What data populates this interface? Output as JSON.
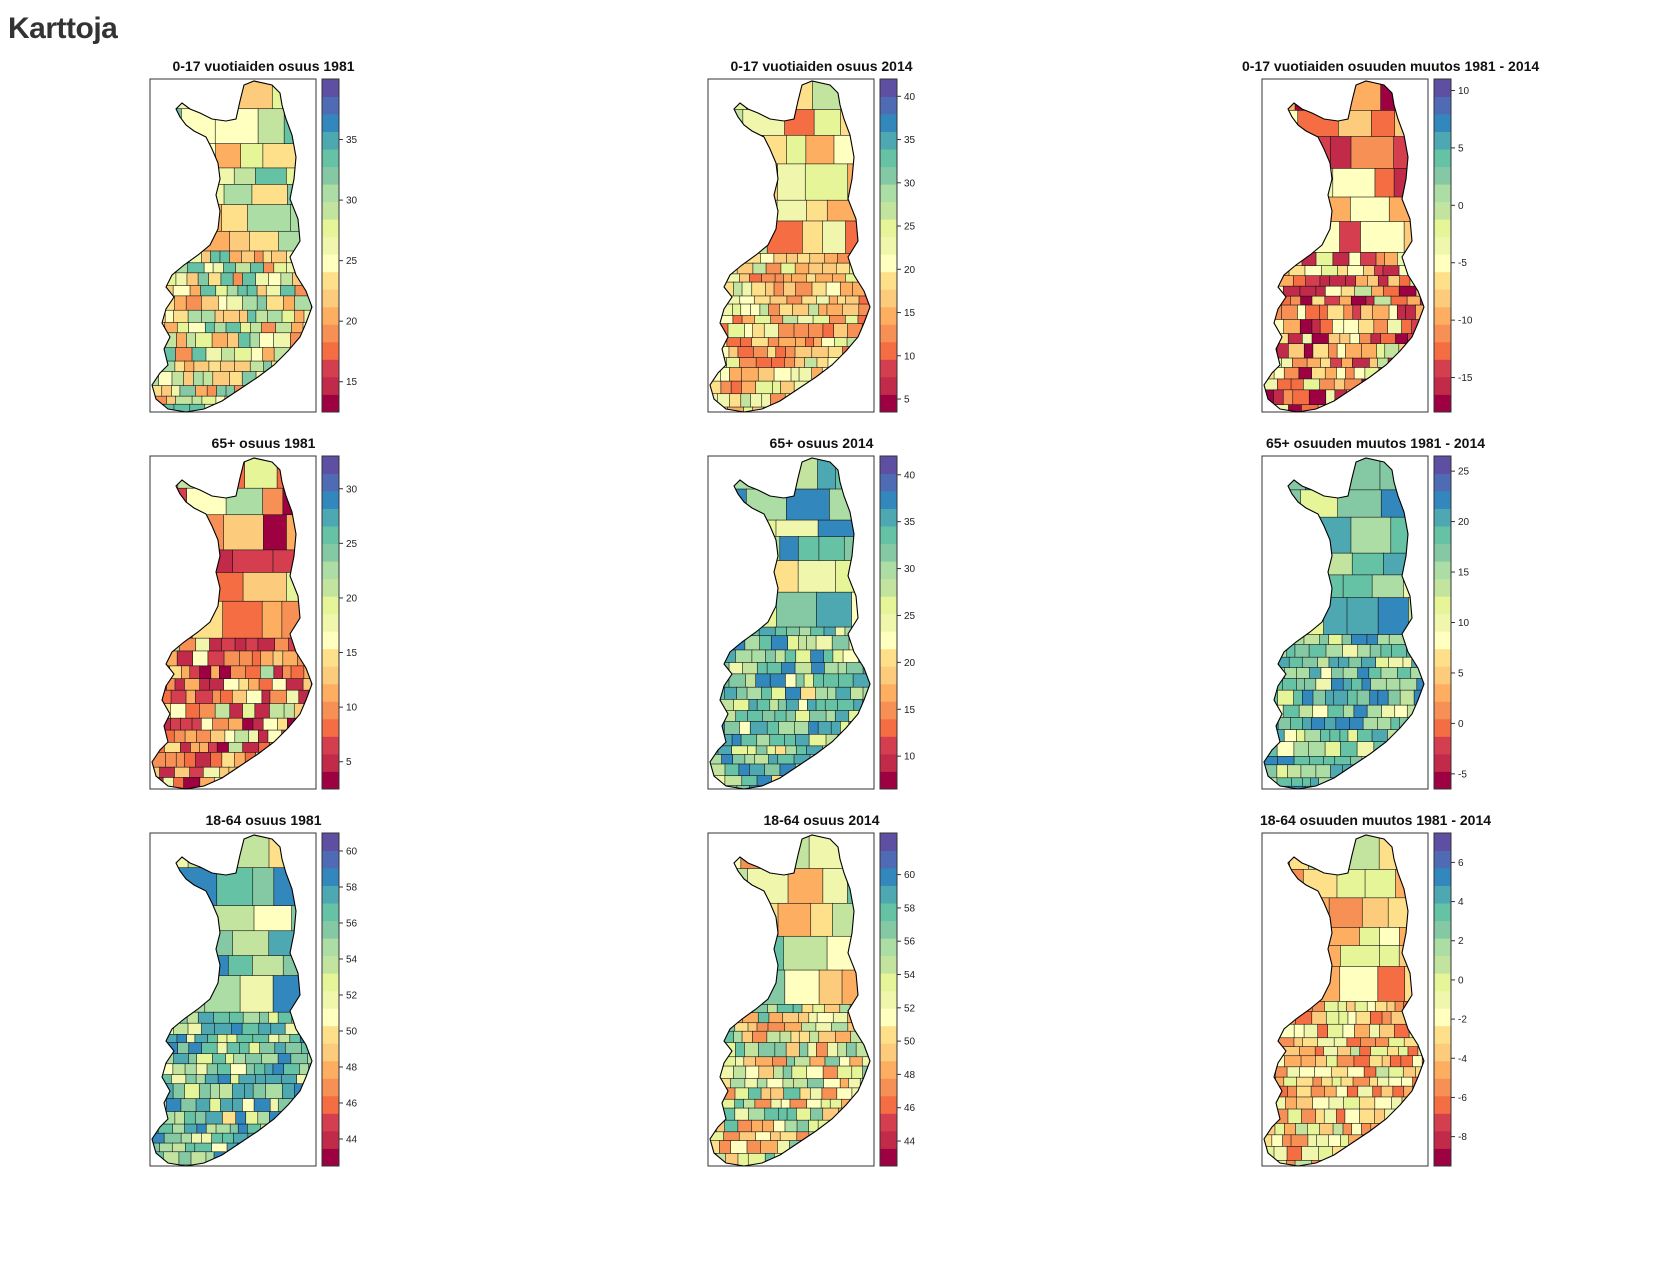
{
  "page": {
    "title": "Karttoja"
  },
  "palette": [
    "#9e0142",
    "#c12a49",
    "#d53e4f",
    "#f46d43",
    "#f79055",
    "#fdae61",
    "#fdcb7c",
    "#fee08b",
    "#ffffbf",
    "#f0f7ac",
    "#e6f598",
    "#c2e49f",
    "#abdda4",
    "#84c8a4",
    "#66c2a5",
    "#4da8b1",
    "#3288bd",
    "#4f6bb6",
    "#5e4fa2"
  ],
  "maps": [
    {
      "id": "youth-1981",
      "title": "0-17 vuotiaiden osuus 1981",
      "scale_range": [
        12.5,
        40
      ],
      "ticks": [
        15,
        20,
        25,
        30,
        35
      ],
      "palette_bias": "mid"
    },
    {
      "id": "youth-2014",
      "title": "0-17 vuotiaiden osuus 2014",
      "scale_range": [
        3.5,
        42
      ],
      "ticks": [
        5,
        10,
        15,
        20,
        25,
        30,
        35,
        40
      ],
      "palette_bias": "warm"
    },
    {
      "id": "youth-change",
      "title": "0-17 vuotiaiden osuuden muutos 1981 - 2014",
      "scale_range": [
        -18,
        11
      ],
      "ticks": [
        -15,
        -10,
        -5,
        0,
        5,
        10
      ],
      "palette_bias": "hot"
    },
    {
      "id": "elderly-1981",
      "title": "65+ osuus 1981",
      "scale_range": [
        2.5,
        33
      ],
      "ticks": [
        5,
        10,
        15,
        20,
        25,
        30
      ],
      "palette_bias": "hot"
    },
    {
      "id": "elderly-2014",
      "title": "65+ osuus 2014",
      "scale_range": [
        6.5,
        42
      ],
      "ticks": [
        10,
        15,
        20,
        25,
        30,
        35,
        40
      ],
      "palette_bias": "cool"
    },
    {
      "id": "elderly-change",
      "title": "65+ osuuden muutos 1981 - 2014",
      "scale_range": [
        -6.5,
        26.5
      ],
      "ticks": [
        -5,
        0,
        5,
        10,
        15,
        20,
        25
      ],
      "palette_bias": "cool"
    },
    {
      "id": "working-1981",
      "title": "18-64 osuus 1981",
      "scale_range": [
        42.5,
        61
      ],
      "ticks": [
        44,
        46,
        48,
        50,
        52,
        54,
        56,
        58,
        60
      ],
      "palette_bias": "cool"
    },
    {
      "id": "working-2014",
      "title": "18-64 osuus 2014",
      "scale_range": [
        42.5,
        62.5
      ],
      "ticks": [
        44,
        46,
        48,
        50,
        52,
        54,
        56,
        58,
        60
      ],
      "palette_bias": "mid"
    },
    {
      "id": "working-change",
      "title": "18-64 osuuden muutos 1981 - 2014",
      "scale_range": [
        -9.5,
        7.5
      ],
      "ticks": [
        -8,
        -6,
        -4,
        -2,
        0,
        2,
        4,
        6
      ],
      "palette_bias": "warm"
    }
  ]
}
